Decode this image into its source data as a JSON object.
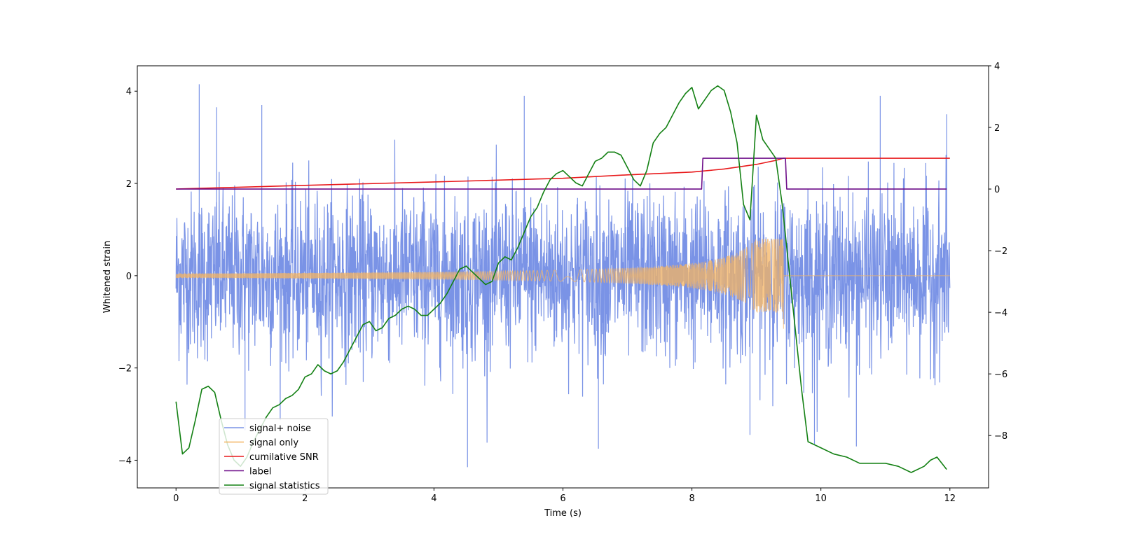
{
  "chart_data": {
    "type": "line",
    "title": "",
    "xlabel": "Time (s)",
    "ylabel": "Whitened strain",
    "y2label": "",
    "xlim": [
      -0.6,
      12.6
    ],
    "ylim": [
      -4.6,
      4.55
    ],
    "y2lim": [
      -9.7,
      4.0
    ],
    "xticks": [
      0,
      2,
      4,
      6,
      8,
      10,
      12
    ],
    "yticks": [
      -4,
      -2,
      0,
      2,
      4
    ],
    "y2ticks": [
      -8,
      -6,
      -4,
      -2,
      0,
      2,
      4
    ],
    "grid": false,
    "legend_position": "lower-left",
    "series": [
      {
        "name": "signal+ noise",
        "color": "#7a93e6",
        "axis": "left",
        "kind": "noise",
        "x_range": [
          0,
          12
        ],
        "amplitude_std": 0.9,
        "spike_peaks": [
          {
            "x": 0.36,
            "y": 4.15
          },
          {
            "x": 0.63,
            "y": 3.65
          },
          {
            "x": 1.33,
            "y": 3.7
          },
          {
            "x": 5.4,
            "y": 3.9
          },
          {
            "x": 4.52,
            "y": -4.15
          },
          {
            "x": 9.9,
            "y": -3.65
          },
          {
            "x": 10.55,
            "y": -3.7
          },
          {
            "x": 10.92,
            "y": 3.9
          },
          {
            "x": 11.95,
            "y": 3.5
          },
          {
            "x": 6.55,
            "y": -3.75
          },
          {
            "x": 8.9,
            "y": -3.45
          },
          {
            "x": 1.07,
            "y": -3.35
          }
        ]
      },
      {
        "name": "signal only",
        "color": "#f5b461",
        "axis": "left",
        "kind": "chirp",
        "x_range": [
          0,
          9.42
        ],
        "tail_to": 12,
        "start_amplitude": 0.05,
        "peak_amplitude": 0.8,
        "peak_negative": -1.15
      },
      {
        "name": "cumilative SNR",
        "color": "#e8191b",
        "axis": "right",
        "x": [
          0,
          2,
          4,
          6,
          7,
          8,
          8.5,
          9,
          9.3,
          9.42,
          9.5,
          12
        ],
        "y": [
          0,
          0.12,
          0.23,
          0.35,
          0.46,
          0.55,
          0.65,
          0.8,
          0.93,
          1.0,
          1.0,
          1.0
        ]
      },
      {
        "name": "label",
        "color": "#6f0f8a",
        "axis": "right",
        "x": [
          0,
          8.15,
          8.17,
          9.45,
          9.47,
          11.95
        ],
        "y": [
          0,
          0,
          1,
          1,
          0,
          0
        ]
      },
      {
        "name": "signal statistics",
        "color": "#138013",
        "axis": "right",
        "x": [
          0,
          0.1,
          0.2,
          0.3,
          0.4,
          0.5,
          0.6,
          0.7,
          0.8,
          0.9,
          1.0,
          1.1,
          1.2,
          1.3,
          1.4,
          1.5,
          1.6,
          1.7,
          1.8,
          1.9,
          2.0,
          2.1,
          2.2,
          2.3,
          2.4,
          2.5,
          2.6,
          2.7,
          2.8,
          2.9,
          3.0,
          3.1,
          3.2,
          3.3,
          3.4,
          3.5,
          3.6,
          3.7,
          3.8,
          3.9,
          4.0,
          4.1,
          4.2,
          4.3,
          4.4,
          4.5,
          4.6,
          4.7,
          4.8,
          4.9,
          5.0,
          5.1,
          5.2,
          5.3,
          5.4,
          5.5,
          5.6,
          5.7,
          5.8,
          5.9,
          6.0,
          6.1,
          6.2,
          6.3,
          6.4,
          6.5,
          6.6,
          6.7,
          6.8,
          6.9,
          7.0,
          7.1,
          7.2,
          7.3,
          7.4,
          7.5,
          7.6,
          7.7,
          7.8,
          7.9,
          8.0,
          8.1,
          8.2,
          8.3,
          8.4,
          8.5,
          8.6,
          8.7,
          8.8,
          8.9,
          9.0,
          9.1,
          9.2,
          9.3,
          9.4,
          9.5,
          9.6,
          9.7,
          9.8,
          9.9,
          10.0,
          10.2,
          10.4,
          10.6,
          10.8,
          11.0,
          11.2,
          11.4,
          11.6,
          11.7,
          11.8,
          11.95
        ],
        "y": [
          -6.9,
          -8.6,
          -8.4,
          -7.5,
          -6.5,
          -6.4,
          -6.6,
          -7.5,
          -8.3,
          -8.8,
          -9.0,
          -8.7,
          -8.2,
          -7.8,
          -7.4,
          -7.1,
          -7.0,
          -6.8,
          -6.7,
          -6.5,
          -6.1,
          -6.0,
          -5.7,
          -5.9,
          -6.0,
          -5.9,
          -5.6,
          -5.2,
          -4.8,
          -4.4,
          -4.3,
          -4.6,
          -4.5,
          -4.2,
          -4.1,
          -3.9,
          -3.8,
          -3.9,
          -4.1,
          -4.1,
          -3.9,
          -3.7,
          -3.4,
          -3.0,
          -2.6,
          -2.5,
          -2.7,
          -2.9,
          -3.1,
          -3.0,
          -2.4,
          -2.2,
          -2.3,
          -1.9,
          -1.4,
          -0.9,
          -0.6,
          -0.1,
          0.3,
          0.5,
          0.6,
          0.4,
          0.2,
          0.1,
          0.5,
          0.9,
          1.0,
          1.2,
          1.2,
          1.1,
          0.7,
          0.3,
          0.1,
          0.6,
          1.5,
          1.8,
          2.0,
          2.4,
          2.8,
          3.1,
          3.3,
          2.6,
          2.9,
          3.2,
          3.35,
          3.2,
          2.5,
          1.5,
          -0.5,
          -1.0,
          2.4,
          1.6,
          1.3,
          1.0,
          -0.5,
          -2.5,
          -4.5,
          -6.5,
          -8.2,
          -8.3,
          -8.4,
          -8.6,
          -8.7,
          -8.9,
          -8.9,
          -8.9,
          -9.0,
          -9.2,
          -9.0,
          -8.8,
          -8.7,
          -9.1
        ]
      }
    ]
  }
}
